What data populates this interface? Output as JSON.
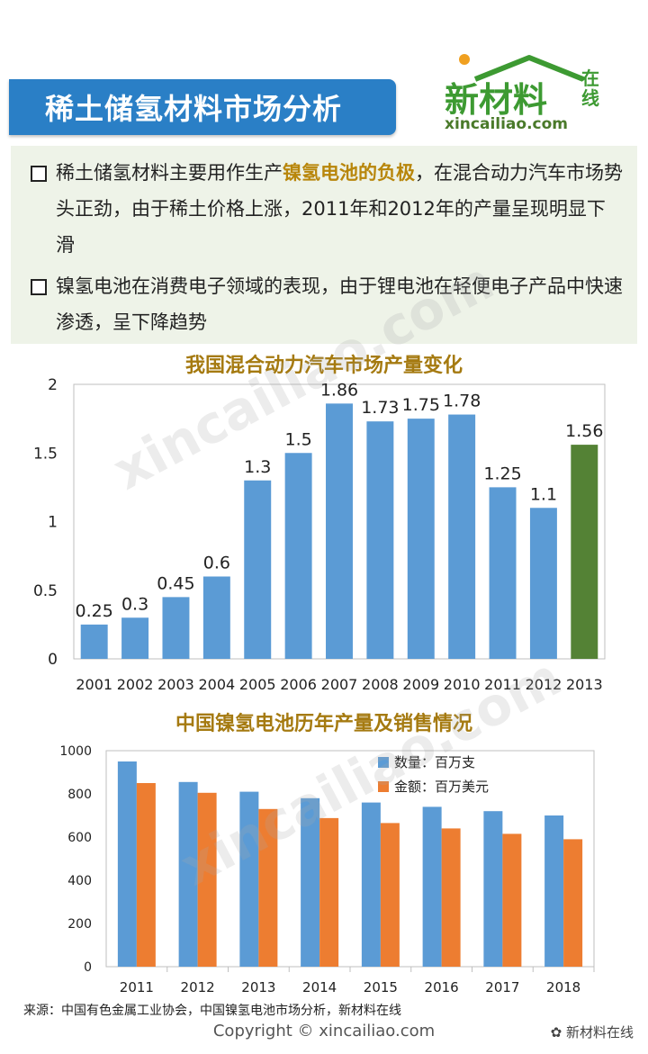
{
  "header": {
    "title": "稀土储氢材料市场分析",
    "logo_main": "新材料",
    "logo_zaixian": "在线",
    "logo_url": "xincailiao.com",
    "accent_color": "#2a7fc6",
    "logo_color": "#3d9a32"
  },
  "bullets": [
    {
      "before": "稀土储氢材料主要用作生产",
      "highlight": "镍氢电池的负极",
      "after": "，在混合动力汽车市场势头正劲，由于稀土价格上涨，2011年和2012年的产量呈现明显下滑"
    },
    {
      "before": "镍氢电池在消费电子领域的表现，由于锂电池在轻便电子产品中快速渗透，呈下降趋势",
      "highlight": "",
      "after": ""
    }
  ],
  "chart_data": [
    {
      "type": "bar",
      "title": "我国混合动力汽车市场产量变化",
      "categories": [
        "2001",
        "2002",
        "2003",
        "2004",
        "2005",
        "2006",
        "2007",
        "2008",
        "2009",
        "2010",
        "2011",
        "2012",
        "2013"
      ],
      "values": [
        0.25,
        0.3,
        0.45,
        0.6,
        1.3,
        1.5,
        1.86,
        1.73,
        1.75,
        1.78,
        1.25,
        1.1,
        1.56
      ],
      "data_labels": [
        "0.25",
        "0.3",
        "0.45",
        "0.6",
        "1.3",
        "1.5",
        "1.86",
        "1.73",
        "1.75",
        "1.78",
        "1.25",
        "1.1",
        "1.56"
      ],
      "ylim": [
        0,
        2
      ],
      "yticks": [
        "0",
        "0.5",
        "1",
        "1.5",
        "2"
      ],
      "bar_color": "#5b9bd5",
      "highlight_color": "#548235",
      "highlight_index": 12,
      "grid": false
    },
    {
      "type": "bar",
      "title": "中国镍氢电池历年产量及销售情况",
      "categories": [
        "2011",
        "2012",
        "2013",
        "2014",
        "2015",
        "2016",
        "2017",
        "2018"
      ],
      "series": [
        {
          "name": "数量：百万支",
          "values": [
            950,
            855,
            810,
            780,
            760,
            740,
            720,
            700
          ],
          "color": "#5b9bd5"
        },
        {
          "name": "金额：百万美元",
          "values": [
            850,
            805,
            730,
            688,
            665,
            640,
            615,
            590
          ],
          "color": "#ed7d31"
        }
      ],
      "ylim": [
        0,
        1000
      ],
      "yticks": [
        "0",
        "200",
        "400",
        "600",
        "800",
        "1000"
      ],
      "legend": "top-right",
      "grid": false
    }
  ],
  "footer": {
    "source": "来源：中国有色金属工业协会，中国镍氢电池市场分析，新材料在线",
    "copyright": "Copyright © xincailiao.com",
    "wechat": "新材料在线"
  },
  "watermark": "xincailiao.com"
}
